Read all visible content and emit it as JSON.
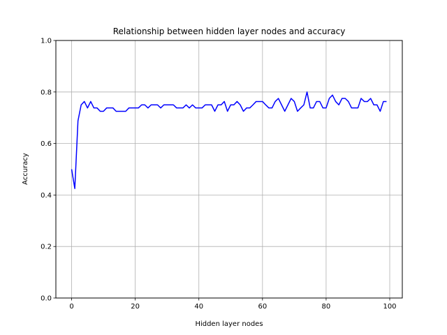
{
  "chart_data": {
    "type": "line",
    "title": "Relationship between hidden layer nodes and accuracy",
    "xlabel": "Hidden layer nodes",
    "ylabel": "Accuracy",
    "xlim": [
      -4.95,
      103.95
    ],
    "ylim": [
      0.0,
      1.0
    ],
    "xticks": [
      0,
      20,
      40,
      60,
      80,
      100
    ],
    "yticks": [
      0.0,
      0.2,
      0.4,
      0.6,
      0.8,
      1.0
    ],
    "xtick_labels": [
      "0",
      "20",
      "40",
      "60",
      "80",
      "100"
    ],
    "ytick_labels": [
      "0.0",
      "0.2",
      "0.4",
      "0.6",
      "0.8",
      "1.0"
    ],
    "grid": true,
    "colors": {
      "line": "#0000ff",
      "grid": "#b0b0b0",
      "axis": "#000000"
    },
    "series": [
      {
        "x": [
          0,
          1,
          2,
          3,
          4,
          5,
          6,
          7,
          8,
          9,
          10,
          11,
          12,
          13,
          14,
          15,
          16,
          17,
          18,
          19,
          20,
          21,
          22,
          23,
          24,
          25,
          26,
          27,
          28,
          29,
          30,
          31,
          32,
          33,
          34,
          35,
          36,
          37,
          38,
          39,
          40,
          41,
          42,
          43,
          44,
          45,
          46,
          47,
          48,
          49,
          50,
          51,
          52,
          53,
          54,
          55,
          56,
          57,
          58,
          59,
          60,
          61,
          62,
          63,
          64,
          65,
          66,
          67,
          68,
          69,
          70,
          71,
          72,
          73,
          74,
          75,
          76,
          77,
          78,
          79,
          80,
          81,
          82,
          83,
          84,
          85,
          86,
          87,
          88,
          89,
          90,
          91,
          92,
          93,
          94,
          95,
          96,
          97,
          98,
          99
        ],
        "values": [
          0.5,
          0.425,
          0.688,
          0.75,
          0.763,
          0.738,
          0.763,
          0.738,
          0.738,
          0.725,
          0.725,
          0.738,
          0.738,
          0.738,
          0.725,
          0.725,
          0.725,
          0.725,
          0.738,
          0.738,
          0.738,
          0.738,
          0.75,
          0.75,
          0.738,
          0.75,
          0.75,
          0.75,
          0.738,
          0.75,
          0.75,
          0.75,
          0.75,
          0.738,
          0.738,
          0.738,
          0.75,
          0.738,
          0.75,
          0.738,
          0.738,
          0.738,
          0.75,
          0.75,
          0.75,
          0.725,
          0.75,
          0.75,
          0.763,
          0.725,
          0.75,
          0.75,
          0.763,
          0.75,
          0.725,
          0.738,
          0.738,
          0.75,
          0.763,
          0.763,
          0.763,
          0.75,
          0.738,
          0.738,
          0.763,
          0.775,
          0.75,
          0.725,
          0.75,
          0.775,
          0.763,
          0.725,
          0.738,
          0.75,
          0.8,
          0.738,
          0.738,
          0.763,
          0.763,
          0.738,
          0.738,
          0.775,
          0.788,
          0.763,
          0.75,
          0.775,
          0.775,
          0.763,
          0.738,
          0.738,
          0.738,
          0.775,
          0.763,
          0.763,
          0.775,
          0.75,
          0.75,
          0.725,
          0.763,
          0.763
        ]
      }
    ]
  }
}
